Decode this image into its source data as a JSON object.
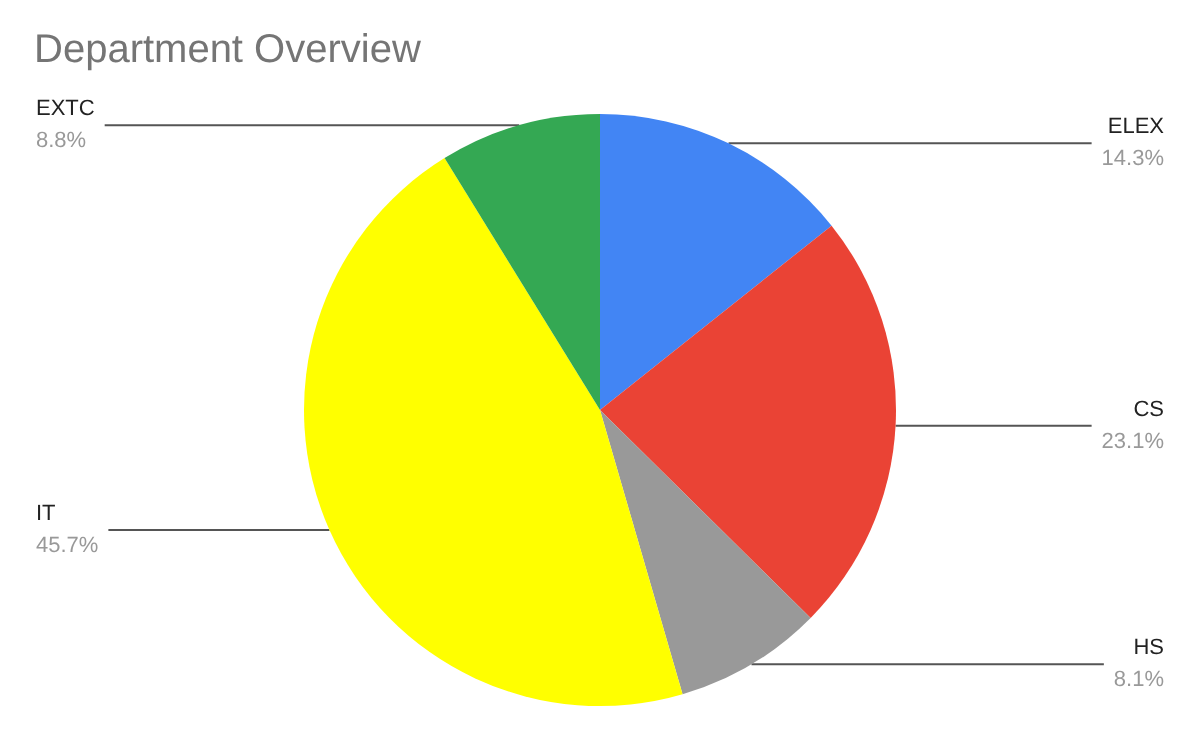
{
  "chart_data": {
    "type": "pie",
    "title": "Department Overview",
    "categories": [
      "ELEX",
      "CS",
      "HS",
      "IT",
      "EXTC"
    ],
    "values": [
      14.3,
      23.1,
      8.1,
      45.7,
      8.8
    ],
    "colors": [
      "#4285f4",
      "#ea4335",
      "#999999",
      "#ffff00",
      "#34a853"
    ],
    "value_labels": [
      "14.3%",
      "23.1%",
      "8.1%",
      "45.7%",
      "8.8%"
    ],
    "legend": false
  }
}
